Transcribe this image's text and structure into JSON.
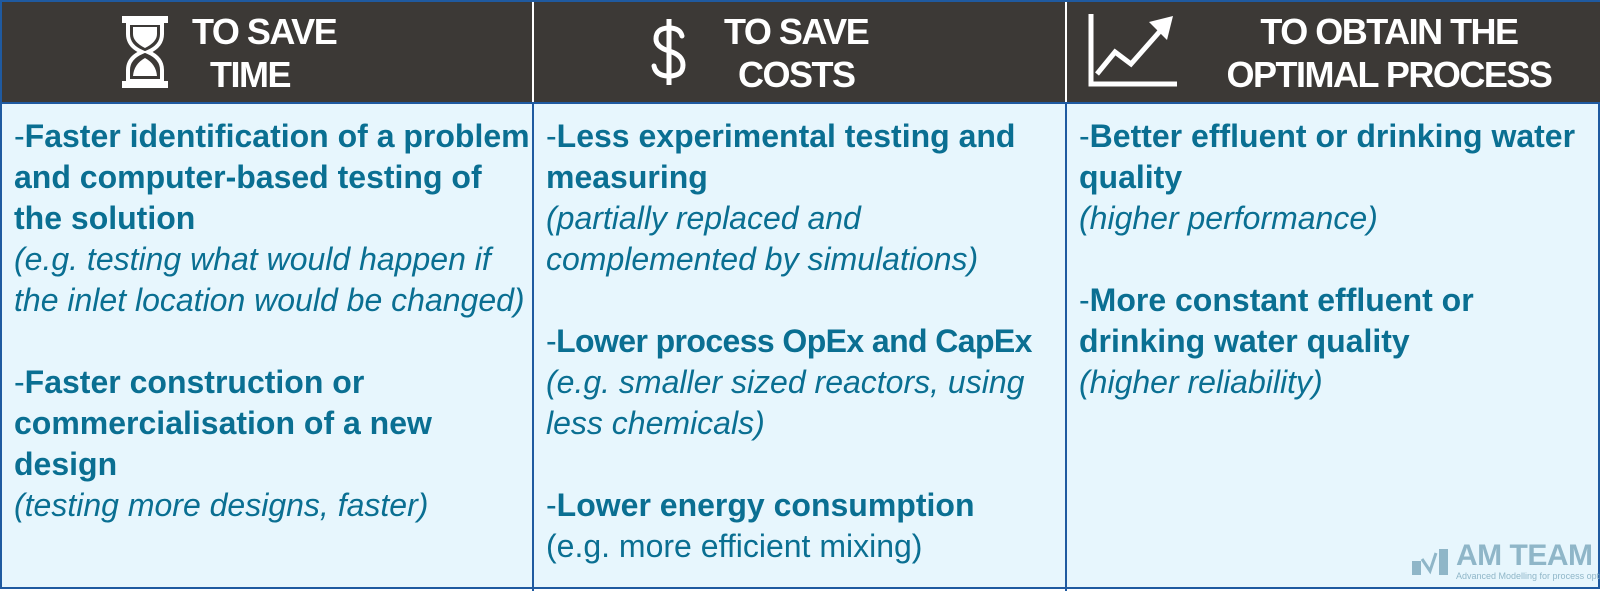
{
  "columns": [
    {
      "header": [
        "TO SAVE",
        "TIME"
      ],
      "icon": "hourglass-icon",
      "items": [
        {
          "dash": "-",
          "title": "Faster identification of a problem and computer-based testing of the solution",
          "note": "(e.g. testing what would happen if the inlet location would be changed)"
        },
        {
          "dash": "-",
          "title": "Faster construction or commercialisation of a new design",
          "note": "(testing more designs, faster)"
        }
      ]
    },
    {
      "header": [
        "TO SAVE",
        "COSTS"
      ],
      "icon": "dollar-icon",
      "items": [
        {
          "dash": "-",
          "title": "Less experimental testing and measuring",
          "note": "(partially replaced and complemented by simulations)"
        },
        {
          "dash": "-",
          "title": "Lower process OpEx and CapEx",
          "note": "(e.g. smaller sized reactors, using less chemicals)"
        },
        {
          "dash": "-",
          "title": "Lower energy consumption",
          "note": "(e.g. more efficient mixing)"
        }
      ]
    },
    {
      "header": [
        "TO OBTAIN THE",
        "OPTIMAL PROCESS"
      ],
      "icon": "trend-up-chart-icon",
      "items": [
        {
          "dash": "-",
          "title": "Better effluent or drinking water quality",
          "note": "(higher performance)"
        },
        {
          "dash": "-",
          "title": "More constant effluent or drinking water quality",
          "note": "(higher reliability)"
        }
      ]
    }
  ],
  "logo": {
    "name": "AM TEAM",
    "tagline": "Advanced Modelling for process optimisation"
  },
  "colors": {
    "header_bg": "#3c3936",
    "body_bg": "#e7f6fd",
    "text": "#0a6f92",
    "border": "#1f5aa0"
  }
}
